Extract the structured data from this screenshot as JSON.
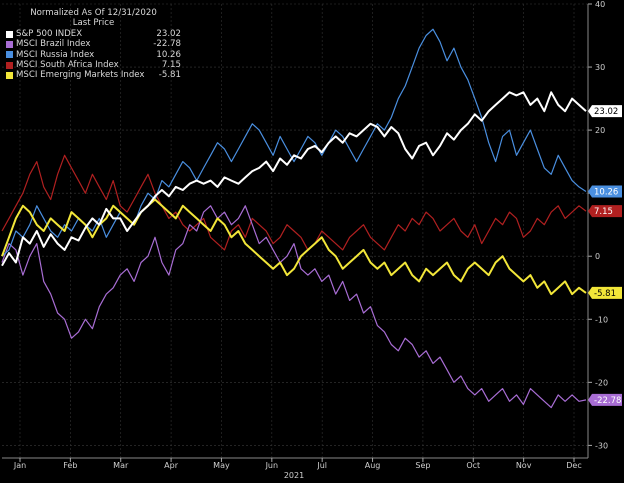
{
  "legend": {
    "title": "Normalized As Of 12/31/2020",
    "subtitle": "Last Price"
  },
  "chart_data": {
    "type": "line",
    "xlabel": "2021",
    "x_ticks": [
      "Jan",
      "Feb",
      "Mar",
      "Apr",
      "May",
      "Jun",
      "Jul",
      "Aug",
      "Sep",
      "Oct",
      "Nov",
      "Dec"
    ],
    "ylim": [
      -32,
      40
    ],
    "y_ticks": [
      -30,
      -20,
      -10,
      0,
      10,
      20,
      30,
      40
    ],
    "grid": true,
    "legend_position": "top-left",
    "series": [
      {
        "name": "S&P 500 INDEX",
        "color": "#ffffff",
        "width": 2,
        "last_label": "23.02",
        "values": [
          -1.5,
          0.5,
          -1,
          3,
          2,
          4,
          1.5,
          3.5,
          2,
          1,
          3,
          2.5,
          4.5,
          6,
          5,
          7.5,
          6,
          6,
          4,
          5.5,
          7,
          8,
          9.5,
          10.5,
          9.5,
          11,
          10.5,
          11.5,
          12,
          11.5,
          12,
          11,
          12.5,
          12,
          11.5,
          12.5,
          13.5,
          14,
          15,
          13.5,
          15.5,
          14.5,
          16,
          15.5,
          17,
          17.5,
          16.5,
          18,
          19,
          18,
          19.5,
          19,
          20,
          21,
          20.5,
          19,
          20.5,
          19.5,
          17,
          15.5,
          17.5,
          18,
          16,
          17.5,
          19.5,
          18.5,
          20,
          21,
          22.5,
          21.5,
          23,
          24,
          25,
          26,
          25.5,
          26,
          24,
          25,
          23,
          26,
          24,
          23,
          25,
          24,
          23.02
        ]
      },
      {
        "name": "MSCI Brazil Index",
        "color": "#a86dd4",
        "width": 1.2,
        "last_label": "-22.78",
        "values": [
          -1,
          2,
          1,
          -3,
          0,
          2,
          -4,
          -6,
          -9,
          -10,
          -13,
          -12,
          -10,
          -11.5,
          -8,
          -6,
          -5,
          -3,
          -2,
          -4,
          -1,
          0,
          3,
          -1,
          -3,
          1,
          2,
          5,
          4,
          7,
          8,
          6,
          7,
          5,
          6,
          8,
          5,
          2,
          3,
          1,
          -1,
          0,
          2,
          -2,
          -3,
          -2,
          -4,
          -3,
          -6,
          -4,
          -7,
          -6,
          -9,
          -8,
          -11,
          -12,
          -14,
          -15,
          -13,
          -14,
          -16,
          -15,
          -17,
          -16,
          -18,
          -20,
          -19,
          -21,
          -22,
          -21,
          -23,
          -22,
          -21,
          -23,
          -22,
          -23.5,
          -21,
          -22,
          -23,
          -24,
          -22,
          -23,
          -22,
          -23,
          -22.78
        ]
      },
      {
        "name": "MSCI Russia Index",
        "color": "#4a8fe0",
        "width": 1.2,
        "last_label": "10.26",
        "values": [
          0,
          1,
          4,
          3,
          5,
          8,
          6,
          4,
          3,
          5,
          4,
          6,
          5,
          4,
          6,
          3,
          5,
          7,
          6,
          5,
          8,
          10,
          9,
          12,
          11,
          13,
          15,
          14,
          12,
          14,
          16,
          18,
          17,
          15,
          17,
          19,
          21,
          20,
          18,
          16,
          19,
          17,
          15,
          17,
          19,
          18,
          16,
          18,
          20,
          19,
          17,
          15,
          17,
          19,
          21,
          20,
          22,
          25,
          27,
          30,
          33,
          35,
          36,
          34,
          31,
          33,
          30,
          28,
          25,
          22,
          18,
          15,
          19,
          20,
          16,
          18,
          20,
          17,
          14,
          13,
          16,
          14,
          12,
          11,
          10.26
        ]
      },
      {
        "name": "MSCI South Africa Index",
        "color": "#b02020",
        "width": 1.2,
        "last_label": "7.15",
        "values": [
          4,
          6,
          8,
          10,
          13,
          15,
          11,
          9,
          13,
          16,
          14,
          12,
          10,
          13,
          11,
          9,
          12,
          8,
          7,
          9,
          11,
          13,
          10,
          8,
          6,
          7,
          5,
          4,
          5,
          6,
          3,
          2,
          1,
          4,
          5,
          3,
          6,
          5,
          4,
          2,
          3,
          5,
          4,
          3,
          1,
          2,
          4,
          3,
          2,
          1,
          3,
          4,
          5,
          3,
          2,
          1,
          3,
          5,
          4,
          6,
          5,
          7,
          6,
          4,
          5,
          6,
          4,
          3,
          5,
          2,
          4,
          6,
          5,
          7,
          6,
          3,
          4,
          6,
          5,
          7,
          8,
          6,
          7,
          8,
          7.15
        ]
      },
      {
        "name": "MSCI Emerging Markets Index",
        "color": "#f2e639",
        "width": 2,
        "last_label": "-5.81",
        "values": [
          0,
          3,
          6,
          8,
          7,
          5,
          4,
          6,
          5,
          4,
          7,
          6,
          5,
          3,
          5,
          6,
          8,
          7,
          6,
          5,
          7,
          8,
          9,
          8,
          7,
          6,
          8,
          7,
          6,
          5,
          4,
          6,
          5,
          3,
          4,
          2,
          1,
          0,
          -1,
          -2,
          -1,
          -3,
          -2,
          0,
          1,
          2,
          3,
          1,
          0,
          -2,
          -1,
          0,
          1,
          -1,
          -2,
          -1,
          -3,
          -2,
          -1,
          -3,
          -4,
          -2,
          -3,
          -2,
          -1,
          -3,
          -4,
          -2,
          -1,
          -2,
          -3,
          -1,
          0,
          -2,
          -3,
          -4,
          -3,
          -5,
          -4,
          -6,
          -5,
          -4,
          -6,
          -5,
          -5.81
        ]
      }
    ]
  },
  "legend_values": [
    "23.02",
    "-22.78",
    "10.26",
    "7.15",
    "-5.81"
  ]
}
